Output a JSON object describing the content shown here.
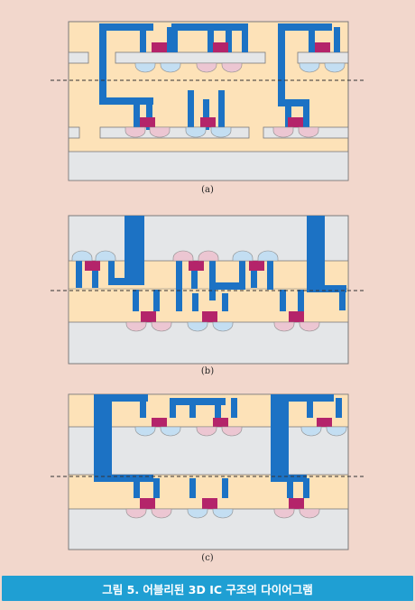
{
  "panels": [
    {
      "label": "(a)"
    },
    {
      "label": "(b)"
    },
    {
      "label": "(c)"
    }
  ],
  "caption": "그림 5. 어블리된 3D IC 구조의 다이어그램",
  "colors": {
    "background": "#f2d7cc",
    "substrate": "#e4e6e8",
    "device_layer": "#fde2b8",
    "interconnect": "#1c72c4",
    "transistor_gate": "#b4246a",
    "bump_blue": "#c3def2",
    "bump_pink": "#ecc6d2",
    "caption_bar": "#1f9fd3"
  }
}
